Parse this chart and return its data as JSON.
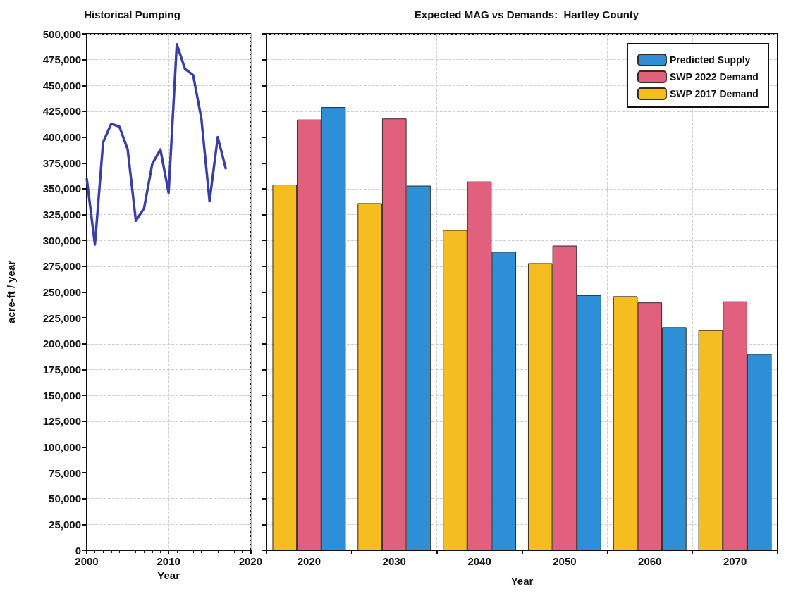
{
  "chart_data": [
    {
      "type": "line",
      "title": "Historical Pumping",
      "xlabel": "Year",
      "ylabel": "acre-ft / year",
      "x": [
        2000,
        2001,
        2002,
        2003,
        2004,
        2005,
        2006,
        2007,
        2008,
        2009,
        2010,
        2011,
        2012,
        2013,
        2014,
        2015,
        2016,
        2017
      ],
      "series": [
        {
          "color": "#3a3fa8",
          "values": [
            360000,
            296000,
            395000,
            413000,
            410000,
            388000,
            319000,
            331000,
            374000,
            388000,
            346000,
            490000,
            466000,
            460000,
            418000,
            338000,
            400000,
            369000
          ]
        }
      ],
      "xlim": [
        2000,
        2020
      ],
      "xticks": [
        2000,
        2010,
        2020
      ],
      "ylim": [
        0,
        500000
      ],
      "yticks": [
        0,
        {
          "value": 25000,
          "label": "25,000"
        },
        {
          "value": 50000,
          "label": "50,000"
        },
        {
          "value": 75000,
          "label": "75,000"
        },
        {
          "value": 100000,
          "label": "100,000"
        },
        {
          "value": 125000,
          "label": "125,000"
        },
        {
          "value": 150000,
          "label": "150,000"
        },
        {
          "value": 175000,
          "label": "175,000"
        },
        {
          "value": 200000,
          "label": "200,000"
        },
        {
          "value": 225000,
          "label": "225,000"
        },
        {
          "value": 250000,
          "label": "250,000"
        },
        {
          "value": 275000,
          "label": "275,000"
        },
        {
          "value": 300000,
          "label": "300,000"
        },
        {
          "value": 325000,
          "label": "325,000"
        },
        {
          "value": 350000,
          "label": "350,000"
        },
        {
          "value": 375000,
          "label": "375,000"
        },
        {
          "value": 400000,
          "label": "400,000"
        },
        {
          "value": 425000,
          "label": "425,000"
        },
        {
          "value": 450000,
          "label": "450,000"
        },
        {
          "value": 475000,
          "label": "475,000"
        },
        {
          "value": 500000,
          "label": "500,000"
        }
      ],
      "grid": true,
      "marker": "none"
    },
    {
      "type": "bar",
      "title": "Expected MAG vs Demands:  Hartley County",
      "xlabel": "Year",
      "categories": [
        "2020",
        "2030",
        "2040",
        "2050",
        "2060",
        "2070"
      ],
      "series": [
        {
          "name": "SWP 2017 Demand",
          "color": "#f5bd1f",
          "values": [
            354000,
            336000,
            310000,
            278000,
            246000,
            213000
          ]
        },
        {
          "name": "SWP 2022 Demand",
          "color": "#e0607e",
          "values": [
            417000,
            418000,
            357000,
            295000,
            240000,
            241000
          ]
        },
        {
          "name": "Predicted Supply",
          "color": "#2e8fd6",
          "values": [
            429000,
            353000,
            289000,
            247000,
            216000,
            190000
          ]
        }
      ],
      "ylim": [
        0,
        500000
      ],
      "yticks": [
        0,
        25000,
        50000,
        75000,
        100000,
        125000,
        150000,
        175000,
        200000,
        225000,
        250000,
        275000,
        300000,
        325000,
        350000,
        375000,
        400000,
        425000,
        450000,
        475000,
        500000
      ],
      "tick_labels": "x",
      "grid": true,
      "legend": "top right"
    }
  ]
}
